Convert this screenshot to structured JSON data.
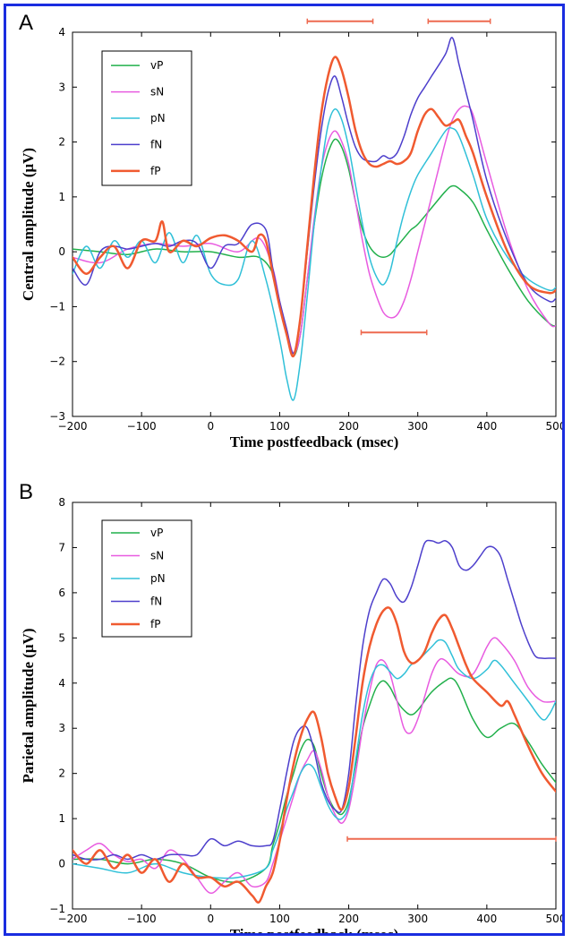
{
  "chart_data": [
    {
      "panel": "A",
      "type": "line",
      "title": "",
      "xlabel": "Time postfeedback (msec)",
      "ylabel": "Central amplitude (μV)",
      "xlim": [
        -200,
        500
      ],
      "ylim": [
        -3,
        4
      ],
      "xticks": [
        -200,
        -100,
        0,
        100,
        200,
        300,
        400,
        500
      ],
      "yticks": [
        -3,
        -2,
        -1,
        0,
        1,
        2,
        3,
        4
      ],
      "grid": false,
      "legend": "top-left",
      "significance_bars": [
        {
          "x": [
            140,
            235
          ],
          "y": 4.2
        },
        {
          "x": [
            315,
            405
          ],
          "y": 4.2
        },
        {
          "x": [
            218,
            313
          ],
          "y": -1.47
        }
      ],
      "series": [
        {
          "name": "vP",
          "color": "#21b04b",
          "width": 1.5,
          "x": [
            -200,
            -160,
            -120,
            -80,
            -40,
            0,
            40,
            70,
            90,
            100,
            110,
            120,
            130,
            140,
            150,
            160,
            170,
            180,
            190,
            200,
            210,
            220,
            230,
            240,
            250,
            260,
            270,
            280,
            290,
            300,
            320,
            340,
            350,
            360,
            380,
            400,
            430,
            460,
            490,
            500
          ],
          "y": [
            0.05,
            0.0,
            -0.05,
            0.05,
            0.0,
            0.0,
            -0.1,
            -0.1,
            -0.4,
            -1.0,
            -1.5,
            -1.9,
            -1.5,
            -0.5,
            0.5,
            1.3,
            1.8,
            2.05,
            1.9,
            1.5,
            0.9,
            0.4,
            0.1,
            -0.05,
            -0.1,
            -0.05,
            0.1,
            0.25,
            0.4,
            0.5,
            0.8,
            1.1,
            1.2,
            1.15,
            0.9,
            0.4,
            -0.3,
            -0.9,
            -1.3,
            -1.35
          ]
        },
        {
          "name": "sN",
          "color": "#e85be0",
          "width": 1.5,
          "x": [
            -200,
            -160,
            -120,
            -80,
            -40,
            0,
            40,
            70,
            90,
            100,
            110,
            120,
            130,
            140,
            150,
            160,
            170,
            180,
            190,
            200,
            210,
            220,
            230,
            240,
            250,
            260,
            270,
            280,
            290,
            300,
            320,
            340,
            350,
            360,
            370,
            380,
            400,
            430,
            460,
            490,
            500
          ],
          "y": [
            -0.1,
            -0.2,
            0.05,
            0.15,
            0.1,
            0.15,
            0.0,
            0.25,
            -0.3,
            -0.9,
            -1.4,
            -1.85,
            -1.5,
            -0.5,
            0.6,
            1.5,
            2.0,
            2.2,
            2.0,
            1.6,
            0.9,
            0.2,
            -0.4,
            -0.8,
            -1.1,
            -1.2,
            -1.15,
            -0.9,
            -0.5,
            0.0,
            1.0,
            2.0,
            2.4,
            2.6,
            2.65,
            2.5,
            1.6,
            0.3,
            -0.7,
            -1.3,
            -1.35
          ]
        },
        {
          "name": "pN",
          "color": "#30c0d8",
          "width": 1.5,
          "x": [
            -200,
            -180,
            -160,
            -140,
            -120,
            -100,
            -80,
            -60,
            -40,
            -20,
            0,
            20,
            40,
            60,
            80,
            100,
            110,
            120,
            130,
            140,
            150,
            160,
            170,
            180,
            190,
            200,
            210,
            220,
            230,
            240,
            250,
            260,
            270,
            280,
            290,
            300,
            320,
            340,
            350,
            360,
            380,
            400,
            430,
            460,
            490,
            500
          ],
          "y": [
            -0.4,
            0.1,
            -0.3,
            0.2,
            -0.1,
            0.2,
            -0.2,
            0.35,
            -0.2,
            0.3,
            -0.4,
            -0.6,
            -0.5,
            0.2,
            -0.5,
            -1.6,
            -2.3,
            -2.7,
            -2.0,
            -0.8,
            0.5,
            1.5,
            2.3,
            2.6,
            2.4,
            1.9,
            1.2,
            0.5,
            -0.1,
            -0.45,
            -0.6,
            -0.35,
            0.2,
            0.7,
            1.1,
            1.4,
            1.8,
            2.2,
            2.25,
            2.1,
            1.4,
            0.6,
            -0.1,
            -0.5,
            -0.7,
            -0.65
          ]
        },
        {
          "name": "fN",
          "color": "#4d3fcc",
          "width": 1.5,
          "x": [
            -200,
            -180,
            -160,
            -140,
            -120,
            -100,
            -80,
            -60,
            -40,
            -20,
            0,
            20,
            40,
            60,
            80,
            90,
            100,
            110,
            120,
            130,
            140,
            150,
            160,
            170,
            180,
            190,
            200,
            210,
            220,
            230,
            240,
            250,
            260,
            270,
            280,
            290,
            300,
            310,
            320,
            340,
            350,
            360,
            370,
            380,
            400,
            430,
            460,
            490,
            500
          ],
          "y": [
            -0.3,
            -0.6,
            0.0,
            0.1,
            0.05,
            0.1,
            0.15,
            0.1,
            0.2,
            0.15,
            -0.3,
            0.1,
            0.15,
            0.5,
            0.4,
            -0.3,
            -0.9,
            -1.4,
            -1.85,
            -1.2,
            0.0,
            1.2,
            2.2,
            2.9,
            3.2,
            2.8,
            2.3,
            1.9,
            1.7,
            1.65,
            1.65,
            1.75,
            1.7,
            1.8,
            2.1,
            2.5,
            2.8,
            3.0,
            3.2,
            3.6,
            3.9,
            3.4,
            2.9,
            2.4,
            1.3,
            0.2,
            -0.6,
            -0.9,
            -0.85
          ]
        },
        {
          "name": "fP",
          "color": "#f05a30",
          "width": 2.5,
          "x": [
            -200,
            -180,
            -160,
            -140,
            -120,
            -100,
            -80,
            -70,
            -60,
            -40,
            -20,
            0,
            20,
            40,
            60,
            70,
            80,
            90,
            100,
            110,
            120,
            130,
            140,
            150,
            160,
            170,
            180,
            190,
            200,
            210,
            220,
            230,
            240,
            250,
            260,
            270,
            280,
            290,
            300,
            310,
            320,
            330,
            340,
            350,
            360,
            370,
            380,
            400,
            430,
            460,
            490,
            500
          ],
          "y": [
            -0.1,
            -0.4,
            -0.1,
            0.1,
            -0.3,
            0.2,
            0.2,
            0.55,
            0.0,
            0.2,
            0.1,
            0.25,
            0.3,
            0.2,
            0.0,
            0.3,
            0.2,
            -0.4,
            -1.0,
            -1.5,
            -1.9,
            -1.2,
            0.1,
            1.4,
            2.5,
            3.2,
            3.55,
            3.3,
            2.8,
            2.2,
            1.8,
            1.6,
            1.55,
            1.6,
            1.65,
            1.6,
            1.65,
            1.8,
            2.2,
            2.5,
            2.6,
            2.45,
            2.3,
            2.35,
            2.4,
            2.1,
            1.8,
            1.0,
            0.0,
            -0.6,
            -0.75,
            -0.7
          ]
        }
      ]
    },
    {
      "panel": "B",
      "type": "line",
      "title": "",
      "xlabel": "Time postfeedback (msec)",
      "ylabel": "Parietal amplitude (μV)",
      "xlim": [
        -200,
        500
      ],
      "ylim": [
        -1,
        8
      ],
      "xticks": [
        -200,
        -100,
        0,
        100,
        200,
        300,
        400,
        500
      ],
      "yticks": [
        -1,
        0,
        1,
        2,
        3,
        4,
        5,
        6,
        7,
        8
      ],
      "grid": false,
      "legend": "top-left",
      "significance_bars": [
        {
          "x": [
            198,
            500
          ],
          "y": 0.55
        }
      ],
      "series": [
        {
          "name": "vP",
          "color": "#21b04b",
          "width": 1.5,
          "x": [
            -200,
            -160,
            -120,
            -80,
            -40,
            0,
            40,
            80,
            90,
            100,
            110,
            120,
            130,
            140,
            150,
            160,
            170,
            180,
            190,
            200,
            210,
            220,
            230,
            240,
            250,
            260,
            270,
            280,
            290,
            300,
            320,
            340,
            350,
            360,
            380,
            400,
            420,
            440,
            460,
            480,
            500
          ],
          "y": [
            0.1,
            0.1,
            0.0,
            0.1,
            0.0,
            -0.3,
            -0.4,
            -0.1,
            0.4,
            0.9,
            1.5,
            2.0,
            2.5,
            2.75,
            2.6,
            2.0,
            1.5,
            1.2,
            1.1,
            1.4,
            2.2,
            3.0,
            3.5,
            3.9,
            4.05,
            3.9,
            3.6,
            3.4,
            3.3,
            3.4,
            3.8,
            4.05,
            4.1,
            3.9,
            3.2,
            2.8,
            3.0,
            3.1,
            2.7,
            2.2,
            1.8
          ]
        },
        {
          "name": "sN",
          "color": "#e85be0",
          "width": 1.5,
          "x": [
            -200,
            -180,
            -160,
            -140,
            -120,
            -100,
            -80,
            -60,
            -40,
            -20,
            0,
            20,
            40,
            60,
            80,
            90,
            100,
            110,
            120,
            130,
            140,
            150,
            160,
            170,
            180,
            190,
            200,
            210,
            220,
            230,
            240,
            250,
            260,
            270,
            280,
            290,
            300,
            310,
            320,
            330,
            340,
            360,
            380,
            400,
            410,
            420,
            440,
            460,
            480,
            500
          ],
          "y": [
            0.1,
            0.3,
            0.45,
            0.2,
            0.05,
            0.1,
            -0.1,
            0.3,
            0.1,
            -0.3,
            -0.65,
            -0.4,
            -0.2,
            -0.5,
            -0.4,
            0.0,
            0.5,
            1.0,
            1.5,
            2.0,
            2.3,
            2.5,
            2.1,
            1.5,
            1.1,
            0.9,
            1.2,
            2.0,
            3.0,
            3.8,
            4.4,
            4.5,
            4.2,
            3.6,
            3.0,
            2.9,
            3.2,
            3.7,
            4.2,
            4.5,
            4.5,
            4.2,
            4.2,
            4.8,
            5.0,
            4.9,
            4.5,
            3.9,
            3.6,
            3.6
          ]
        },
        {
          "name": "pN",
          "color": "#30c0d8",
          "width": 1.5,
          "x": [
            -200,
            -160,
            -120,
            -80,
            -40,
            0,
            40,
            80,
            90,
            100,
            110,
            120,
            130,
            140,
            150,
            160,
            170,
            180,
            190,
            200,
            210,
            220,
            230,
            240,
            250,
            260,
            270,
            280,
            290,
            300,
            320,
            330,
            340,
            350,
            360,
            380,
            400,
            410,
            420,
            440,
            460,
            480,
            490,
            500
          ],
          "y": [
            0.0,
            -0.1,
            -0.2,
            0.0,
            -0.2,
            -0.3,
            -0.3,
            -0.1,
            0.3,
            0.7,
            1.2,
            1.6,
            2.0,
            2.2,
            2.1,
            1.7,
            1.3,
            1.05,
            1.0,
            1.3,
            2.3,
            3.3,
            4.0,
            4.35,
            4.4,
            4.25,
            4.1,
            4.2,
            4.4,
            4.5,
            4.8,
            4.95,
            4.9,
            4.6,
            4.3,
            4.1,
            4.3,
            4.5,
            4.4,
            4.0,
            3.6,
            3.2,
            3.3,
            3.6
          ]
        },
        {
          "name": "fN",
          "color": "#4d3fcc",
          "width": 1.5,
          "x": [
            -200,
            -180,
            -160,
            -140,
            -120,
            -100,
            -80,
            -60,
            -40,
            -20,
            0,
            20,
            40,
            60,
            80,
            90,
            100,
            110,
            120,
            130,
            140,
            150,
            160,
            170,
            180,
            190,
            200,
            210,
            220,
            230,
            240,
            250,
            260,
            270,
            280,
            290,
            300,
            310,
            320,
            330,
            340,
            350,
            360,
            370,
            380,
            390,
            400,
            410,
            420,
            430,
            440,
            450,
            460,
            470,
            480,
            490,
            500
          ],
          "y": [
            0.2,
            0.1,
            0.1,
            0.2,
            0.1,
            0.2,
            0.1,
            0.2,
            0.2,
            0.2,
            0.55,
            0.4,
            0.5,
            0.4,
            0.4,
            0.5,
            1.2,
            2.0,
            2.7,
            3.0,
            3.0,
            2.5,
            1.8,
            1.4,
            1.2,
            1.2,
            2.0,
            3.5,
            4.8,
            5.6,
            6.0,
            6.3,
            6.2,
            5.9,
            5.8,
            6.1,
            6.6,
            7.1,
            7.15,
            7.1,
            7.15,
            7.0,
            6.6,
            6.5,
            6.6,
            6.8,
            7.0,
            7.0,
            6.8,
            6.3,
            5.8,
            5.3,
            4.9,
            4.6,
            4.55,
            4.55,
            4.55
          ]
        },
        {
          "name": "fP",
          "color": "#f05a30",
          "width": 2.5,
          "x": [
            -200,
            -180,
            -160,
            -140,
            -120,
            -100,
            -80,
            -60,
            -40,
            -20,
            0,
            20,
            40,
            60,
            70,
            80,
            90,
            100,
            110,
            120,
            130,
            140,
            150,
            160,
            170,
            180,
            190,
            200,
            210,
            220,
            230,
            240,
            250,
            260,
            270,
            280,
            290,
            300,
            310,
            320,
            330,
            340,
            350,
            360,
            370,
            380,
            400,
            420,
            430,
            440,
            460,
            480,
            500
          ],
          "y": [
            0.3,
            0.0,
            0.3,
            -0.1,
            0.2,
            -0.2,
            0.1,
            -0.4,
            0.0,
            -0.3,
            -0.3,
            -0.5,
            -0.4,
            -0.7,
            -0.85,
            -0.5,
            -0.2,
            0.5,
            1.4,
            2.2,
            2.8,
            3.2,
            3.35,
            2.8,
            2.0,
            1.5,
            1.2,
            1.7,
            2.8,
            4.0,
            4.8,
            5.3,
            5.6,
            5.65,
            5.3,
            4.7,
            4.45,
            4.5,
            4.7,
            5.1,
            5.4,
            5.5,
            5.2,
            4.8,
            4.4,
            4.1,
            3.8,
            3.5,
            3.6,
            3.3,
            2.6,
            2.0,
            1.6
          ]
        }
      ]
    }
  ]
}
